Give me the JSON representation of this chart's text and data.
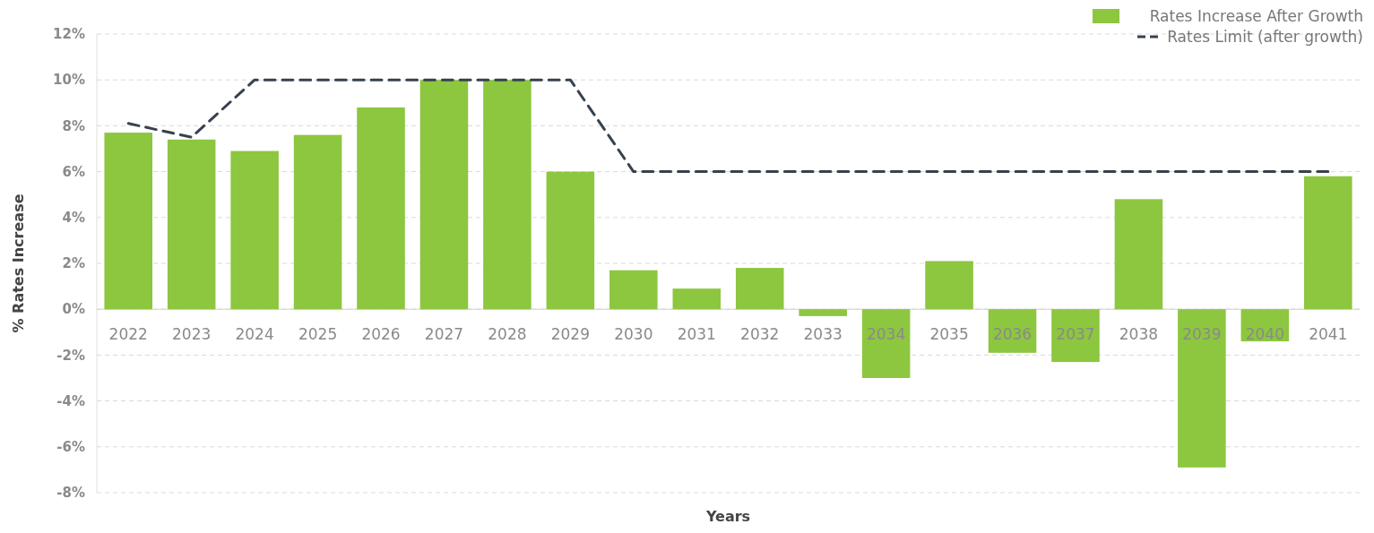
{
  "chart_data": {
    "type": "bar",
    "xlabel": "Years",
    "ylabel": "% Rates Increase",
    "categories": [
      "2022",
      "2023",
      "2024",
      "2025",
      "2026",
      "2027",
      "2028",
      "2029",
      "2030",
      "2031",
      "2032",
      "2033",
      "2034",
      "2035",
      "2036",
      "2037",
      "2038",
      "2039",
      "2040",
      "2041"
    ],
    "series": [
      {
        "name": "Rates Increase After Growth",
        "color": "#8dc63f",
        "values": [
          7.7,
          7.4,
          6.9,
          7.6,
          8.8,
          10.0,
          10.0,
          6.0,
          1.7,
          0.9,
          1.8,
          -0.3,
          -3.0,
          2.1,
          -1.9,
          -2.3,
          4.8,
          -6.9,
          -1.4,
          5.8
        ]
      },
      {
        "name": "Rates Limit (after growth)",
        "type": "line",
        "color": "#37414f",
        "line_style": "dashed",
        "marker": "none",
        "values": [
          8.1,
          7.5,
          10,
          10,
          10,
          10,
          10,
          10,
          6,
          6,
          6,
          6,
          6,
          6,
          6,
          6,
          6,
          6,
          6,
          6
        ]
      }
    ],
    "ylim": [
      -8,
      12
    ],
    "yticks": [
      {
        "value": -8,
        "label": "-8%"
      },
      {
        "value": -6,
        "label": "-6%"
      },
      {
        "value": -4,
        "label": "-4%"
      },
      {
        "value": -2,
        "label": "-2%"
      },
      {
        "value": 0,
        "label": "0%"
      },
      {
        "value": 2,
        "label": "2%"
      },
      {
        "value": 4,
        "label": "4%"
      },
      {
        "value": 6,
        "label": "6%"
      },
      {
        "value": 8,
        "label": "8%"
      },
      {
        "value": 10,
        "label": "10%"
      },
      {
        "value": 12,
        "label": "12%"
      }
    ],
    "grid": "y",
    "legend": "top right"
  }
}
